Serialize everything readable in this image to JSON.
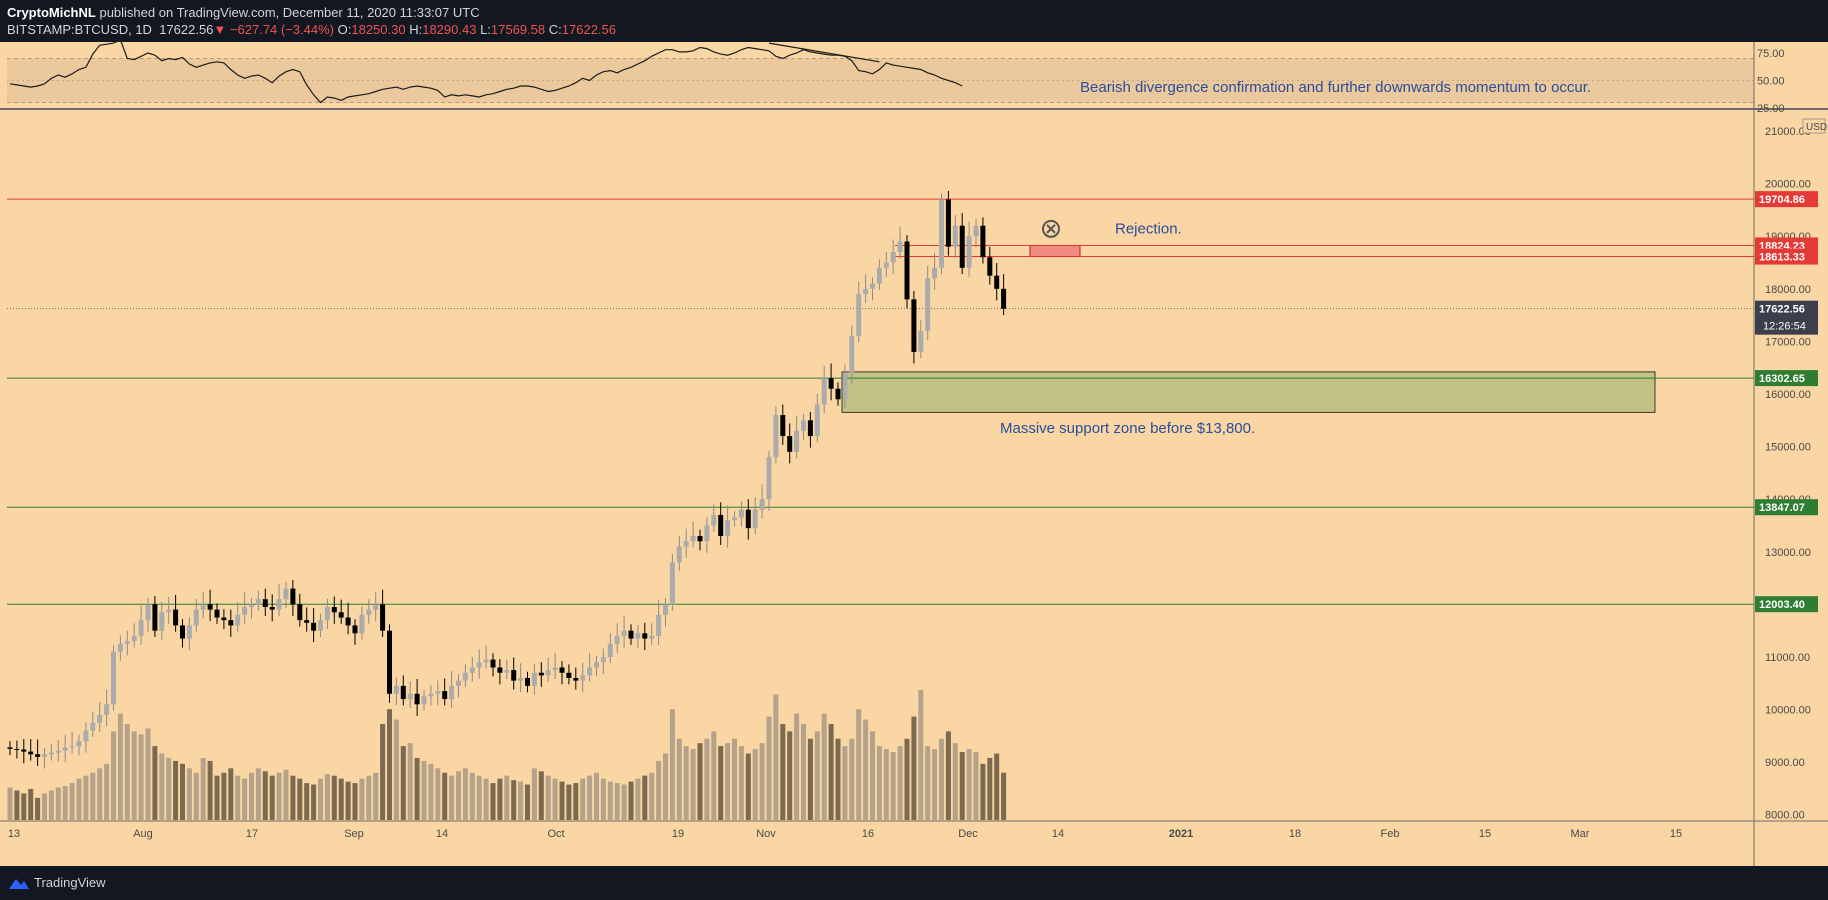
{
  "header": {
    "publisher": "CryptoMichNL",
    "published_text": "published on TradingView.com, December 11, 2020 11:33:07 UTC",
    "symbol": "BITSTAMP:BTCUSD, 1D",
    "last": "17622.56",
    "change": "−627.74 (−3.44%)",
    "o_label": "O:",
    "o": "18250.30",
    "h_label": "H:",
    "h": "18290.43",
    "l_label": "L:",
    "l": "17569.58",
    "c_label": "C:",
    "c": "17622.56"
  },
  "footer": {
    "brand": "TradingView"
  },
  "colors": {
    "background": "#f9d6a3",
    "up_candle": "#ababab",
    "down_candle": "#000000",
    "resistance": "#e53935",
    "support": "#2e7d32",
    "annotation": "#2a4d9c"
  },
  "chart_data": [
    {
      "type": "line",
      "name": "RSI",
      "ylim": [
        25,
        85
      ],
      "y_ticks": [
        "75.00",
        "50.00",
        "25.00"
      ],
      "band": [
        30,
        70
      ],
      "values": [
        47,
        46,
        45,
        44,
        45,
        47,
        52,
        55,
        53,
        56,
        60,
        62,
        74,
        82,
        83,
        84,
        87,
        70,
        69,
        72,
        75,
        73,
        68,
        70,
        69,
        71,
        65,
        62,
        64,
        66,
        67,
        66,
        60,
        55,
        52,
        54,
        55,
        52,
        48,
        54,
        58,
        60,
        58,
        46,
        37,
        30,
        35,
        34,
        32,
        35,
        36,
        37,
        38,
        40,
        42,
        43,
        44,
        42,
        44,
        45,
        44,
        43,
        41,
        35,
        37,
        36,
        37,
        36,
        35,
        37,
        38,
        40,
        42,
        43,
        45,
        45,
        44,
        42,
        40,
        41,
        43,
        45,
        48,
        52,
        50,
        55,
        58,
        59,
        57,
        60,
        62,
        65,
        68,
        72,
        75,
        78,
        78,
        76,
        76,
        77,
        80,
        79,
        76,
        74,
        73,
        75,
        78,
        80,
        79,
        78,
        77,
        72,
        70,
        73,
        75,
        78,
        76,
        75,
        74,
        73,
        73,
        72,
        68,
        59,
        58,
        56,
        60,
        66,
        64,
        63,
        62,
        61,
        60,
        57,
        55,
        52,
        50,
        48,
        45
      ],
      "annotation": "Bearish divergence confirmation and further downwards momentum to occur."
    },
    {
      "type": "candlestick",
      "unit": "USD",
      "ylim": [
        7900,
        21400
      ],
      "y_ticks": [
        "21000.00",
        "20000.00",
        "19000.00",
        "18000.00",
        "17000.00",
        "16000.00",
        "15000.00",
        "14000.00",
        "13000.00",
        "12000.00",
        "11000.00",
        "10000.00",
        "9000.00",
        "8000.00"
      ],
      "x_ticks": [
        "13",
        "Aug",
        "17",
        "Sep",
        "14",
        "Oct",
        "19",
        "Nov",
        "16",
        "Dec",
        "14",
        "2021",
        "18",
        "Feb",
        "15",
        "Mar",
        "15"
      ],
      "closes": [
        9250,
        9240,
        9200,
        9150,
        9100,
        9150,
        9180,
        9220,
        9280,
        9300,
        9400,
        9600,
        9750,
        9900,
        10100,
        11100,
        11250,
        11300,
        11400,
        11700,
        12000,
        11500,
        11850,
        11900,
        11600,
        11350,
        11600,
        11900,
        12000,
        11900,
        11750,
        11700,
        11600,
        11800,
        11950,
        12000,
        12100,
        11950,
        11900,
        12100,
        12300,
        12000,
        11700,
        11650,
        11500,
        11700,
        11950,
        11850,
        11750,
        11600,
        11450,
        11800,
        11900,
        12000,
        11500,
        10300,
        10450,
        10200,
        10300,
        10100,
        10250,
        10300,
        10350,
        10200,
        10450,
        10550,
        10700,
        10800,
        10900,
        10950,
        10800,
        10700,
        10750,
        10550,
        10600,
        10450,
        10700,
        10650,
        10750,
        10800,
        10700,
        10600,
        10550,
        10650,
        10800,
        10900,
        11000,
        11250,
        11400,
        11500,
        11350,
        11450,
        11350,
        11400,
        11800,
        12000,
        12800,
        13100,
        13200,
        13300,
        13200,
        13500,
        13700,
        13300,
        13600,
        13650,
        13800,
        13450,
        13800,
        14000,
        14800,
        15600,
        15200,
        14900,
        15300,
        15500,
        15200,
        15800,
        16300,
        16100,
        15900,
        16400,
        17100,
        17900,
        18000,
        18100,
        18400,
        18500,
        18700,
        18900,
        17800,
        16800,
        17200,
        18200,
        18400,
        19700,
        18800,
        19200,
        18400,
        19000,
        19200,
        18600,
        18250,
        18000,
        17620
      ],
      "volumes": [
        2200,
        2000,
        1800,
        2100,
        1500,
        1800,
        2000,
        2200,
        2300,
        2500,
        2800,
        3000,
        3200,
        3500,
        3800,
        6000,
        7200,
        6500,
        6000,
        5800,
        6200,
        5000,
        4500,
        4200,
        4000,
        3800,
        3500,
        3200,
        4200,
        4000,
        3000,
        3200,
        3500,
        3000,
        2800,
        3200,
        3500,
        3300,
        3000,
        3200,
        3400,
        3000,
        2800,
        2500,
        2400,
        2800,
        3100,
        3000,
        2800,
        2600,
        2500,
        2800,
        3000,
        3200,
        6500,
        7500,
        6800,
        5000,
        5200,
        4200,
        4000,
        3800,
        3500,
        3200,
        3000,
        3300,
        3500,
        3200,
        3000,
        2800,
        2500,
        2800,
        3000,
        2700,
        2600,
        2400,
        3500,
        3300,
        3000,
        2800,
        2600,
        2400,
        2500,
        2800,
        3000,
        3200,
        2800,
        2600,
        2500,
        2400,
        2600,
        2800,
        3000,
        3200,
        4000,
        4500,
        7500,
        5500,
        5000,
        4800,
        5200,
        5500,
        6000,
        5000,
        5200,
        5500,
        5000,
        4500,
        4800,
        5200,
        7000,
        8500,
        6500,
        6000,
        7200,
        6500,
        5500,
        6000,
        7200,
        6500,
        5500,
        5000,
        5500,
        7500,
        6800,
        6000,
        5000,
        4800,
        4600,
        5000,
        5500,
        7000,
        8800,
        5000,
        4800,
        5500,
        6000,
        5200,
        4600,
        4800,
        4600,
        3800,
        4200,
        4500,
        3200
      ],
      "levels": [
        {
          "value": "19704.86",
          "role": "resistance"
        },
        {
          "value": "18824.23",
          "role": "resistance"
        },
        {
          "value": "18613.33",
          "role": "resistance"
        },
        {
          "value": "16302.65",
          "role": "support"
        },
        {
          "value": "13847.07",
          "role": "support"
        },
        {
          "value": "12003.40",
          "role": "support"
        }
      ],
      "last_price": "17622.56",
      "countdown": "12:26:54",
      "annotations": [
        "Rejection.",
        "Massive support zone before $13,800."
      ]
    }
  ]
}
